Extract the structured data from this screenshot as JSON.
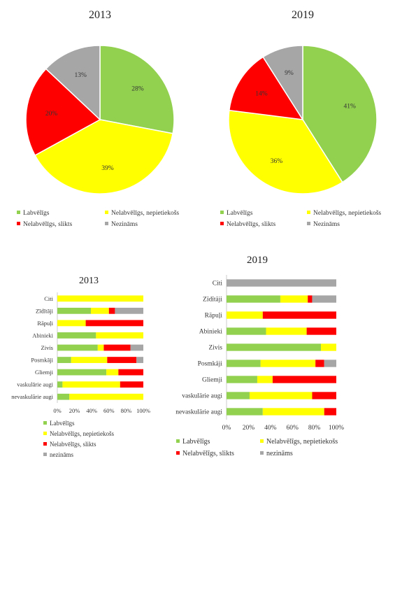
{
  "colors": {
    "labvelgs": "#92d050",
    "nelabvelgs_nepietiekoss": "#ffff00",
    "nelabvelgs_slikts": "#ff0000",
    "nezinams": "#a6a6a6"
  },
  "chart_data": [
    {
      "type": "pie",
      "title": "2013",
      "labels": [
        "Labvēlīgs",
        "Nelabvēlīgs, nepietiekošs",
        "Nelabvēlīgs, slikts",
        "Nezināms"
      ],
      "values": [
        28,
        39,
        20,
        13
      ],
      "value_labels": [
        "28%",
        "39%",
        "20%",
        "13%"
      ],
      "legend_position": "bottom"
    },
    {
      "type": "pie",
      "title": "2019",
      "labels": [
        "Labvēlīgs",
        "Nelabvēlīgs, nepietiekošs",
        "Nelabvēlīgs, slikts",
        "Nezināms"
      ],
      "values": [
        41,
        36,
        14,
        9
      ],
      "value_labels": [
        "41%",
        "36%",
        "14%",
        "9%"
      ],
      "legend_position": "bottom"
    },
    {
      "type": "bar",
      "orientation": "horizontal",
      "stacked": "percent",
      "title": "2013",
      "categories": [
        "Citi",
        "Zīdītāji",
        "Rāpuļi",
        "Abinieki",
        "Zivis",
        "Posmkāji",
        "Gliemji",
        "vaskulārie augi",
        "nevaskulārie augi"
      ],
      "series": [
        {
          "name": "Labvēlīgs",
          "values": [
            0,
            39,
            0,
            45,
            47,
            16,
            57,
            6,
            14
          ]
        },
        {
          "name": "Nelabvēlīgs, nepietiekošs",
          "values": [
            100,
            21,
            33,
            55,
            7,
            42,
            14,
            67,
            86
          ]
        },
        {
          "name": "Nelabvēlīgs, slikts",
          "values": [
            0,
            7,
            67,
            0,
            31,
            34,
            29,
            27,
            0
          ]
        },
        {
          "name": "nezināms",
          "values": [
            0,
            33,
            0,
            0,
            15,
            8,
            0,
            0,
            0
          ]
        }
      ],
      "xticks": [
        "0%",
        "20%",
        "40%",
        "60%",
        "80%",
        "100%"
      ],
      "xlim": [
        0,
        100
      ],
      "legend_position": "bottom"
    },
    {
      "type": "bar",
      "orientation": "horizontal",
      "stacked": "percent",
      "title": "2019",
      "categories": [
        "Citi",
        "Zīdītāji",
        "Rāpuļi",
        "Abinieki",
        "Zivis",
        "Posmkāji",
        "Gliemji",
        "vaskulārie augi",
        "nevaskulārie augi"
      ],
      "series": [
        {
          "name": "Labvēlīgs",
          "values": [
            0,
            49,
            0,
            36,
            86,
            31,
            28,
            21,
            33
          ]
        },
        {
          "name": "Nelabvēlīgs, nepietiekošs",
          "values": [
            0,
            25,
            33,
            37,
            14,
            50,
            14,
            57,
            56
          ]
        },
        {
          "name": "Nelabvēlīgs, slikts",
          "values": [
            0,
            4,
            67,
            27,
            0,
            8,
            58,
            22,
            11
          ]
        },
        {
          "name": "nezināms",
          "values": [
            100,
            22,
            0,
            0,
            0,
            11,
            0,
            0,
            0
          ]
        }
      ],
      "xticks": [
        "0%",
        "20%",
        "40%",
        "60%",
        "80%",
        "100%"
      ],
      "xlim": [
        0,
        100
      ],
      "legend_position": "bottom"
    }
  ]
}
